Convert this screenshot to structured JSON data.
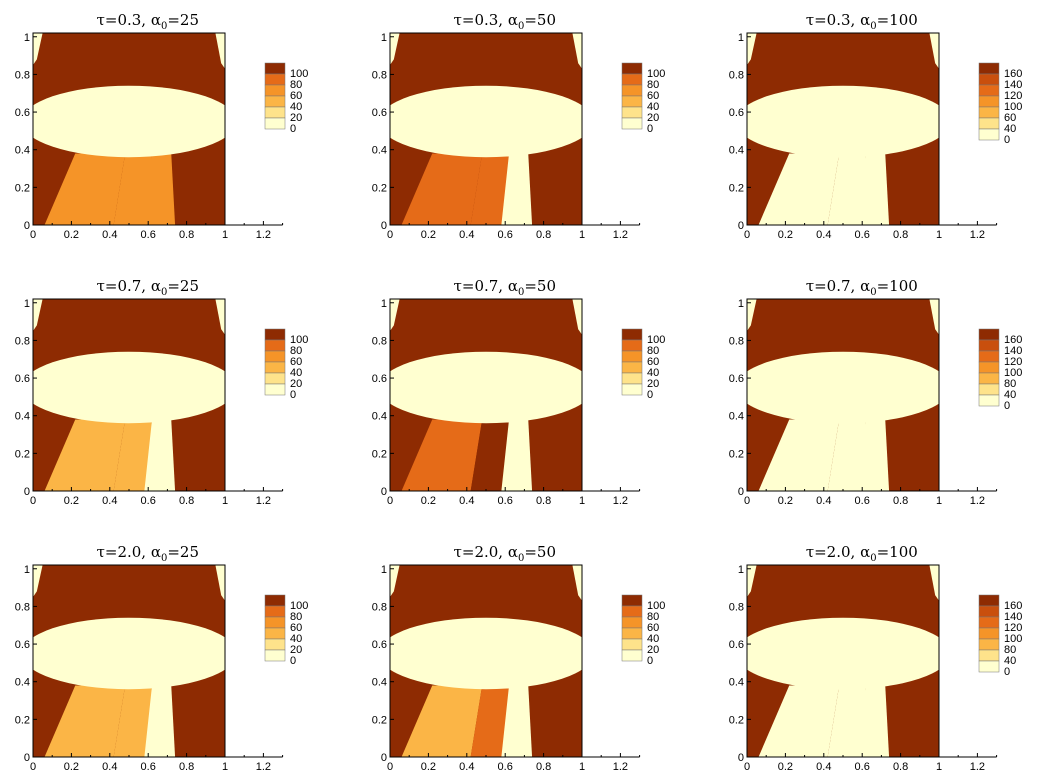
{
  "figure": {
    "layout": {
      "rows": 3,
      "cols": 3
    },
    "palette": {
      "0": "#ffffd0",
      "1": "#fee38b",
      "2": "#fbb546",
      "3": "#f59428",
      "4": "#e56b18",
      "5": "#c94f0d",
      "6": "#8e2b02"
    }
  },
  "chart_data": [
    {
      "type": "heatmap",
      "tau": "0.3",
      "alpha": "25",
      "title": {
        "pre": "τ=0.3, α",
        "sub": "0",
        "post": "=25"
      },
      "xticks": [
        "0",
        "0.2",
        "0.4",
        "0.6",
        "0.8",
        "1",
        "1.2"
      ],
      "yticks": [
        "0",
        "0.2",
        "0.4",
        "0.6",
        "0.8",
        "1"
      ],
      "xlim": [
        0,
        1.3
      ],
      "ylim": [
        0,
        1.02
      ],
      "legend": {
        "labels": [
          "100",
          "80",
          "60",
          "40",
          "20",
          "0"
        ],
        "colors": [
          "#8e2b02",
          "#e56b18",
          "#f59428",
          "#fbb546",
          "#fee38b",
          "#ffffd0"
        ]
      },
      "lower_fill": [
        3,
        3,
        3
      ]
    },
    {
      "type": "heatmap",
      "tau": "0.3",
      "alpha": "50",
      "title": {
        "pre": "τ=0.3, α",
        "sub": "0",
        "post": "=50"
      },
      "xticks": [
        "0",
        "0.2",
        "0.4",
        "0.6",
        "0.8",
        "1",
        "1.2"
      ],
      "yticks": [
        "0",
        "0.2",
        "0.4",
        "0.6",
        "0.8",
        "1"
      ],
      "xlim": [
        0,
        1.3
      ],
      "ylim": [
        0,
        1.02
      ],
      "legend": {
        "labels": [
          "100",
          "80",
          "60",
          "40",
          "20",
          "0"
        ],
        "colors": [
          "#8e2b02",
          "#e56b18",
          "#f59428",
          "#fbb546",
          "#fee38b",
          "#ffffd0"
        ]
      },
      "lower_fill": [
        4,
        4,
        0
      ]
    },
    {
      "type": "heatmap",
      "tau": "0.3",
      "alpha": "100",
      "title": {
        "pre": "τ=0.3, α",
        "sub": "0",
        "post": "=100"
      },
      "xticks": [
        "0",
        "0.2",
        "0.4",
        "0.6",
        "0.8",
        "1",
        "1.2"
      ],
      "yticks": [
        "0",
        "0.2",
        "0.4",
        "0.6",
        "0.8",
        "1"
      ],
      "xlim": [
        0,
        1.3
      ],
      "ylim": [
        0,
        1.02
      ],
      "legend": {
        "labels": [
          "160",
          "140",
          "120",
          "100",
          "60",
          "40",
          "0"
        ],
        "colors": [
          "#8e2b02",
          "#c94f0d",
          "#e56b18",
          "#f59428",
          "#fbb546",
          "#fee38b",
          "#ffffd0"
        ]
      },
      "lower_fill": [
        0,
        0,
        0
      ]
    },
    {
      "type": "heatmap",
      "tau": "0.7",
      "alpha": "25",
      "title": {
        "pre": "τ=0.7, α",
        "sub": "0",
        "post": "=25"
      },
      "xticks": [
        "0",
        "0.2",
        "0.4",
        "0.6",
        "0.8",
        "1",
        "1.2"
      ],
      "yticks": [
        "0",
        "0.2",
        "0.4",
        "0.6",
        "0.8",
        "1"
      ],
      "xlim": [
        0,
        1.3
      ],
      "ylim": [
        0,
        1.02
      ],
      "legend": {
        "labels": [
          "100",
          "80",
          "60",
          "40",
          "20",
          "0"
        ],
        "colors": [
          "#8e2b02",
          "#e56b18",
          "#f59428",
          "#fbb546",
          "#fee38b",
          "#ffffd0"
        ]
      },
      "lower_fill": [
        2,
        2,
        0
      ]
    },
    {
      "type": "heatmap",
      "tau": "0.7",
      "alpha": "50",
      "title": {
        "pre": "τ=0.7, α",
        "sub": "0",
        "post": "=50"
      },
      "xticks": [
        "0",
        "0.2",
        "0.4",
        "0.6",
        "0.8",
        "1",
        "1.2"
      ],
      "yticks": [
        "0",
        "0.2",
        "0.4",
        "0.6",
        "0.8",
        "1"
      ],
      "xlim": [
        0,
        1.3
      ],
      "ylim": [
        0,
        1.02
      ],
      "legend": {
        "labels": [
          "100",
          "80",
          "60",
          "40",
          "20",
          "0"
        ],
        "colors": [
          "#8e2b02",
          "#e56b18",
          "#f59428",
          "#fbb546",
          "#fee38b",
          "#ffffd0"
        ]
      },
      "lower_fill": [
        4,
        6,
        0
      ]
    },
    {
      "type": "heatmap",
      "tau": "0.7",
      "alpha": "100",
      "title": {
        "pre": "τ=0.7, α",
        "sub": "0",
        "post": "=100"
      },
      "xticks": [
        "0",
        "0.2",
        "0.4",
        "0.6",
        "0.8",
        "1",
        "1.2"
      ],
      "yticks": [
        "0",
        "0.2",
        "0.4",
        "0.6",
        "0.8",
        "1"
      ],
      "xlim": [
        0,
        1.3
      ],
      "ylim": [
        0,
        1.02
      ],
      "legend": {
        "labels": [
          "160",
          "140",
          "120",
          "100",
          "80",
          "40",
          "0"
        ],
        "colors": [
          "#8e2b02",
          "#c94f0d",
          "#e56b18",
          "#f59428",
          "#fbb546",
          "#fee38b",
          "#ffffd0"
        ]
      },
      "lower_fill": [
        0,
        0,
        0
      ]
    },
    {
      "type": "heatmap",
      "tau": "2.0",
      "alpha": "25",
      "title": {
        "pre": "τ=2.0, α",
        "sub": "0",
        "post": "=25"
      },
      "xticks": [
        "0",
        "0.2",
        "0.4",
        "0.6",
        "0.8",
        "1",
        "1.2"
      ],
      "yticks": [
        "0",
        "0.2",
        "0.4",
        "0.6",
        "0.8",
        "1"
      ],
      "xlim": [
        0,
        1.3
      ],
      "ylim": [
        0,
        1.02
      ],
      "legend": {
        "labels": [
          "100",
          "80",
          "60",
          "40",
          "20",
          "0"
        ],
        "colors": [
          "#8e2b02",
          "#e56b18",
          "#f59428",
          "#fbb546",
          "#fee38b",
          "#ffffd0"
        ]
      },
      "lower_fill": [
        2,
        2,
        0
      ]
    },
    {
      "type": "heatmap",
      "tau": "2.0",
      "alpha": "50",
      "title": {
        "pre": "τ=2.0, α",
        "sub": "0",
        "post": "=50"
      },
      "xticks": [
        "0",
        "0.2",
        "0.4",
        "0.6",
        "0.8",
        "1",
        "1.2"
      ],
      "yticks": [
        "0",
        "0.2",
        "0.4",
        "0.6",
        "0.8",
        "1"
      ],
      "xlim": [
        0,
        1.3
      ],
      "ylim": [
        0,
        1.02
      ],
      "legend": {
        "labels": [
          "100",
          "80",
          "60",
          "40",
          "20",
          "0"
        ],
        "colors": [
          "#8e2b02",
          "#e56b18",
          "#f59428",
          "#fbb546",
          "#fee38b",
          "#ffffd0"
        ]
      },
      "lower_fill": [
        2,
        4,
        0
      ]
    },
    {
      "type": "heatmap",
      "tau": "2.0",
      "alpha": "100",
      "title": {
        "pre": "τ=2.0, α",
        "sub": "0",
        "post": "=100"
      },
      "xticks": [
        "0",
        "0.2",
        "0.4",
        "0.6",
        "0.8",
        "1",
        "1.2"
      ],
      "yticks": [
        "0",
        "0.2",
        "0.4",
        "0.6",
        "0.8",
        "1"
      ],
      "xlim": [
        0,
        1.3
      ],
      "ylim": [
        0,
        1.02
      ],
      "legend": {
        "labels": [
          "160",
          "140",
          "120",
          "100",
          "80",
          "40",
          "0"
        ],
        "colors": [
          "#8e2b02",
          "#c94f0d",
          "#e56b18",
          "#f59428",
          "#fbb546",
          "#fee38b",
          "#ffffd0"
        ]
      },
      "lower_fill": [
        0,
        0,
        0
      ]
    }
  ]
}
